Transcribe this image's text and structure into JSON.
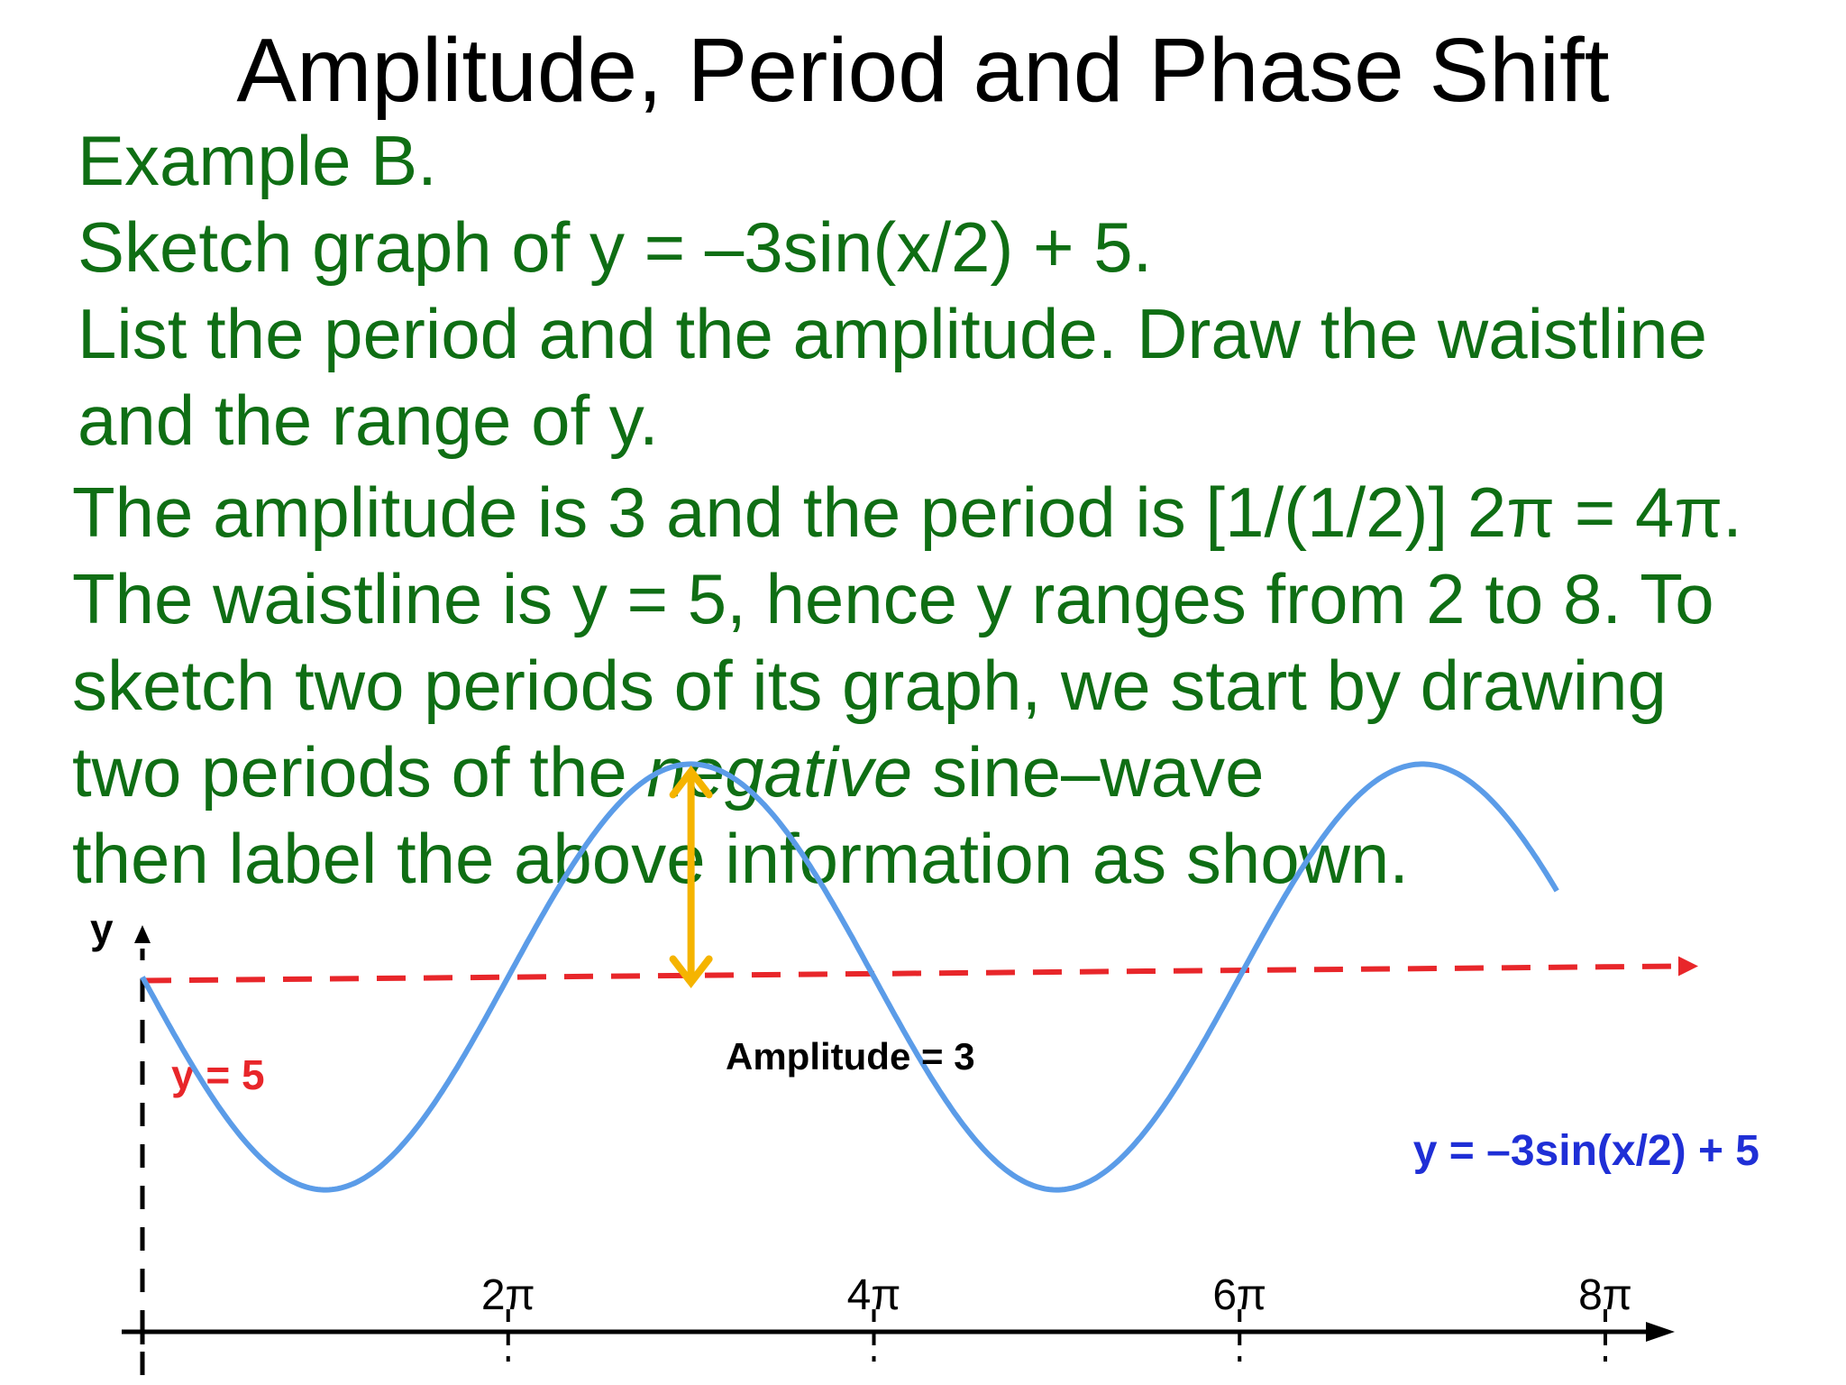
{
  "title": "Amplitude, Period and Phase Shift",
  "problem": {
    "lines": [
      "Example B.",
      "Sketch graph of y = –3sin(x/2) + 5.",
      "List the period and the amplitude. Draw the waistline",
      "and the range of y."
    ]
  },
  "solution": {
    "line1": "The amplitude is 3 and the period is [1/(1/2)] 2π = 4π.",
    "line2": "The waistline is y = 5, hence y ranges from 2 to 8. To",
    "line3": "sketch two periods of its graph, we start by drawing",
    "line4_pre": "two periods of the ",
    "line4_em": "negative",
    "line4_post": " sine–wave",
    "line5": "then label the above information as shown."
  },
  "colors": {
    "title_text": "#000000",
    "body_text": "#0f6e14",
    "curve": "#5b9ce8",
    "waistline": "#e8262a",
    "amplitude_arrow": "#f5b400",
    "equation_label": "#1f2fd6",
    "axes": "#000000"
  },
  "chart_data": {
    "type": "line",
    "function": "y = -3 sin(x/2) + 5",
    "xlabel": "",
    "ylabel": "y",
    "x_ticks": [
      {
        "value": 6.2832,
        "label": "2π"
      },
      {
        "value": 12.5664,
        "label": "4π"
      },
      {
        "value": 18.8496,
        "label": "6π"
      },
      {
        "value": 25.1327,
        "label": "8π"
      }
    ],
    "xlim": [
      0,
      26.2
    ],
    "ylim": [
      0,
      9
    ],
    "series": [
      {
        "values_from_function": "y = -3 sin(x/2) + 5",
        "domain": [
          0,
          24.3
        ],
        "color": "#5b9ce8"
      }
    ],
    "reference_lines": [
      {
        "y": 5,
        "label": "y = 5",
        "style": "dashed",
        "color": "#e8262a"
      }
    ],
    "annotations": [
      {
        "text": "Amplitude = 3",
        "type": "double-arrow",
        "x": 9.4248,
        "y_from": 5,
        "y_to": 8,
        "color": "#f5b400"
      },
      {
        "text": "y = –3sin(x/2) + 5",
        "color": "#1f2fd6"
      }
    ],
    "grid": false
  }
}
